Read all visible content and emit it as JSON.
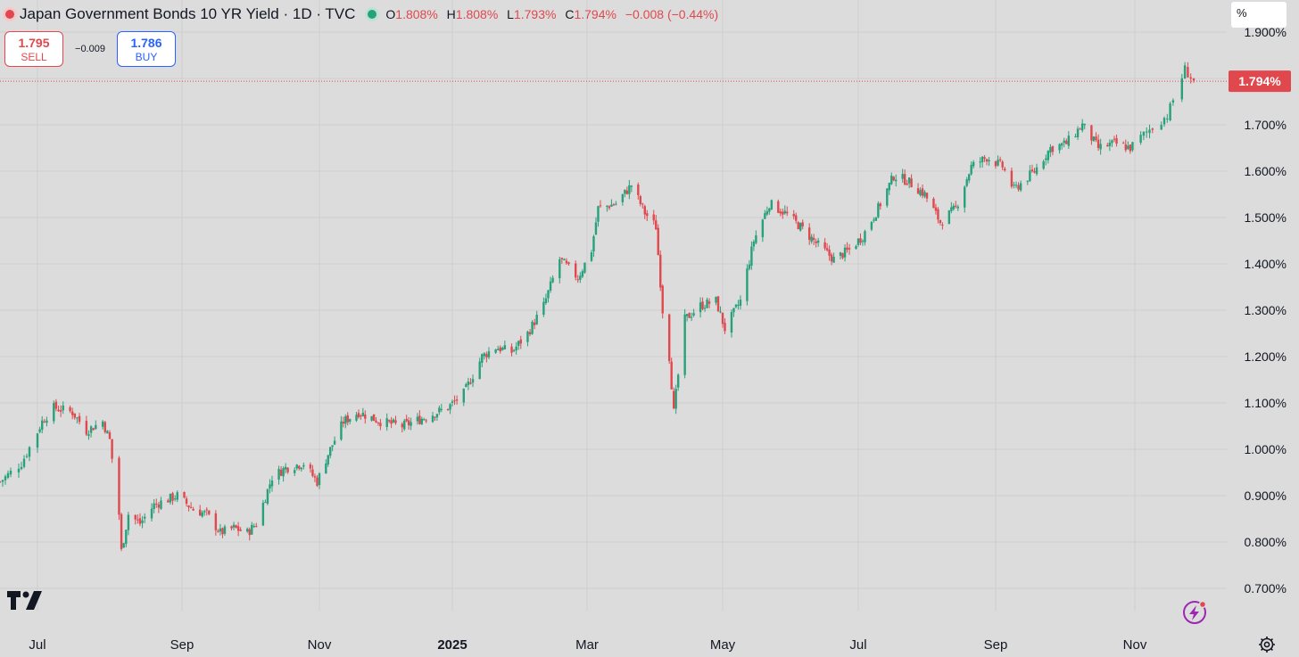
{
  "legend": {
    "title": "Japan Government Bonds 10 YR Yield · 1D · TVC",
    "open_key": "O",
    "open": "1.808%",
    "high_key": "H",
    "high": "1.808%",
    "low_key": "L",
    "low": "1.793%",
    "close_key": "C",
    "close": "1.794%",
    "change": "−0.008 (−0.44%)"
  },
  "trade": {
    "sell_price": "1.795",
    "sell_label": "SELL",
    "spread": "−0.009",
    "buy_price": "1.786",
    "buy_label": "BUY"
  },
  "price_scale": {
    "unit": "%"
  },
  "colors": {
    "up": "#26a17b",
    "down": "#e0484e",
    "background": "#dcdcdc",
    "grid": "#cfcfcf"
  },
  "icons": [
    "tradingview-logo-icon",
    "flash-icon",
    "gear-icon"
  ],
  "chart_data": {
    "type": "candlestick",
    "x_range": [
      "2024-06-17",
      "2025-11-21"
    ],
    "ylim": [
      0.63,
      1.91
    ],
    "y_ticks": [
      {
        "value": 0.7,
        "label": "0.700%"
      },
      {
        "value": 0.8,
        "label": "0.800%"
      },
      {
        "value": 0.9,
        "label": "0.900%"
      },
      {
        "value": 1.0,
        "label": "1.000%"
      },
      {
        "value": 1.1,
        "label": "1.100%"
      },
      {
        "value": 1.2,
        "label": "1.200%"
      },
      {
        "value": 1.3,
        "label": "1.300%"
      },
      {
        "value": 1.4,
        "label": "1.400%"
      },
      {
        "value": 1.5,
        "label": "1.500%"
      },
      {
        "value": 1.6,
        "label": "1.600%"
      },
      {
        "value": 1.7,
        "label": "1.700%"
      },
      {
        "value": 1.8,
        "label": "1.800%"
      },
      {
        "value": 1.9,
        "label": "1.900%"
      }
    ],
    "x_ticks": [
      {
        "date": "2024-07-01",
        "label": "Jul"
      },
      {
        "date": "2024-09-01",
        "label": "Sep"
      },
      {
        "date": "2024-11-01",
        "label": "Nov"
      },
      {
        "date": "2025-01-01",
        "label": "2025",
        "bold": true
      },
      {
        "date": "2025-03-01",
        "label": "Mar"
      },
      {
        "date": "2025-05-01",
        "label": "May"
      },
      {
        "date": "2025-07-01",
        "label": "Jul"
      },
      {
        "date": "2025-09-01",
        "label": "Sep"
      },
      {
        "date": "2025-11-01",
        "label": "Nov"
      }
    ],
    "last_value": {
      "value": 1.794,
      "label": "1.794%"
    },
    "grid": true,
    "close_path_approx": [
      [
        "2024-06-17",
        0.93
      ],
      [
        "2024-06-25",
        0.97
      ],
      [
        "2024-07-03",
        1.06
      ],
      [
        "2024-07-08",
        1.09
      ],
      [
        "2024-07-16",
        1.08
      ],
      [
        "2024-07-22",
        1.04
      ],
      [
        "2024-07-29",
        1.06
      ],
      [
        "2024-08-01",
        1.02
      ],
      [
        "2024-08-05",
        0.86
      ],
      [
        "2024-08-06",
        0.78
      ],
      [
        "2024-08-09",
        0.86
      ],
      [
        "2024-08-14",
        0.84
      ],
      [
        "2024-08-20",
        0.88
      ],
      [
        "2024-08-30",
        0.9
      ],
      [
        "2024-09-06",
        0.87
      ],
      [
        "2024-09-12",
        0.86
      ],
      [
        "2024-09-18",
        0.82
      ],
      [
        "2024-09-24",
        0.83
      ],
      [
        "2024-09-30",
        0.82
      ],
      [
        "2024-10-04",
        0.84
      ],
      [
        "2024-10-11",
        0.94
      ],
      [
        "2024-10-17",
        0.96
      ],
      [
        "2024-10-25",
        0.97
      ],
      [
        "2024-10-31",
        0.93
      ],
      [
        "2024-11-05",
        0.99
      ],
      [
        "2024-11-12",
        1.06
      ],
      [
        "2024-11-19",
        1.08
      ],
      [
        "2024-11-29",
        1.06
      ],
      [
        "2024-12-09",
        1.05
      ],
      [
        "2024-12-20",
        1.07
      ],
      [
        "2024-12-30",
        1.09
      ],
      [
        "2025-01-06",
        1.12
      ],
      [
        "2025-01-14",
        1.2
      ],
      [
        "2025-01-20",
        1.22
      ],
      [
        "2025-01-27",
        1.21
      ],
      [
        "2025-02-03",
        1.25
      ],
      [
        "2025-02-10",
        1.31
      ],
      [
        "2025-02-17",
        1.41
      ],
      [
        "2025-02-25",
        1.37
      ],
      [
        "2025-03-03",
        1.43
      ],
      [
        "2025-03-06",
        1.52
      ],
      [
        "2025-03-14",
        1.53
      ],
      [
        "2025-03-21",
        1.57
      ],
      [
        "2025-03-27",
        1.51
      ],
      [
        "2025-04-01",
        1.48
      ],
      [
        "2025-04-04",
        1.3
      ],
      [
        "2025-04-07",
        1.2
      ],
      [
        "2025-04-09",
        1.08
      ],
      [
        "2025-04-14",
        1.28
      ],
      [
        "2025-04-21",
        1.31
      ],
      [
        "2025-04-28",
        1.32
      ],
      [
        "2025-05-02",
        1.26
      ],
      [
        "2025-05-09",
        1.32
      ],
      [
        "2025-05-15",
        1.45
      ],
      [
        "2025-05-22",
        1.53
      ],
      [
        "2025-05-29",
        1.51
      ],
      [
        "2025-06-05",
        1.48
      ],
      [
        "2025-06-13",
        1.44
      ],
      [
        "2025-06-20",
        1.41
      ],
      [
        "2025-06-27",
        1.43
      ],
      [
        "2025-07-03",
        1.46
      ],
      [
        "2025-07-10",
        1.52
      ],
      [
        "2025-07-17",
        1.59
      ],
      [
        "2025-07-23",
        1.58
      ],
      [
        "2025-07-31",
        1.55
      ],
      [
        "2025-08-07",
        1.49
      ],
      [
        "2025-08-14",
        1.52
      ],
      [
        "2025-08-21",
        1.61
      ],
      [
        "2025-08-28",
        1.63
      ],
      [
        "2025-09-04",
        1.61
      ],
      [
        "2025-09-09",
        1.56
      ],
      [
        "2025-09-18",
        1.6
      ],
      [
        "2025-09-25",
        1.65
      ],
      [
        "2025-10-02",
        1.66
      ],
      [
        "2025-10-09",
        1.7
      ],
      [
        "2025-10-16",
        1.65
      ],
      [
        "2025-10-23",
        1.66
      ],
      [
        "2025-10-30",
        1.65
      ],
      [
        "2025-11-06",
        1.69
      ],
      [
        "2025-11-12",
        1.72
      ],
      [
        "2025-11-18",
        1.82
      ],
      [
        "2025-11-21",
        1.794
      ]
    ]
  }
}
